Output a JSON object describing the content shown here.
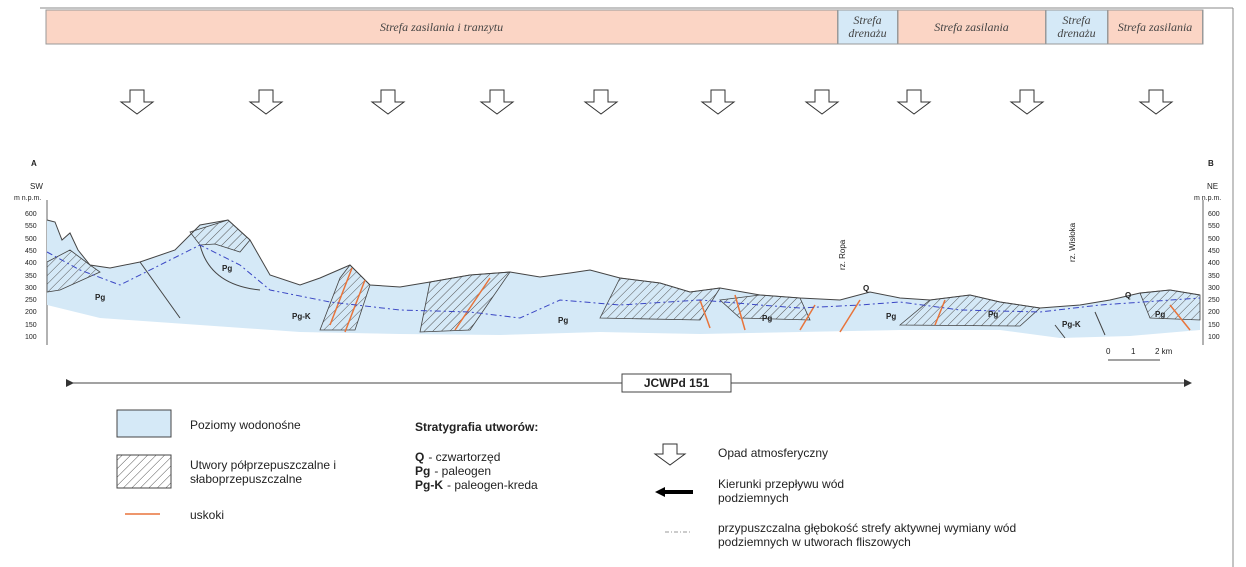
{
  "zones": [
    "Strefa zasilania i tranzytu",
    "Strefa drenażu",
    "Strefa zasilania",
    "Strefa drenażu",
    "Strefa zasilania"
  ],
  "section": {
    "start_label": "A",
    "end_label": "B",
    "start_dir": "SW",
    "end_dir": "NE",
    "unit": "m n.p.m.",
    "ticks": [
      600,
      550,
      500,
      450,
      400,
      350,
      300,
      250,
      200,
      150,
      100
    ],
    "units": [
      "Pg",
      "Pg",
      "Pg-K",
      "Pg",
      "Pg",
      "Pg",
      "Pg",
      "Pg-K",
      "Pg",
      "Q",
      "Q"
    ],
    "rivers": [
      "rz. Ropa",
      "rz. Wisłoka"
    ],
    "scale": [
      "0",
      "1",
      "2 km"
    ],
    "body": "JCWPd 151"
  },
  "legend": {
    "aquifer": "Poziomy wodonośne",
    "aquitard": "Utwory półprzepuszczalne i słaboprzepuszczalne",
    "faults": "uskoki",
    "strat_title": "Stratygrafia utworów:",
    "strat": [
      {
        "symbol": "Q",
        "text": "- czwartorzęd"
      },
      {
        "symbol": "Pg",
        "text": "- paleogen"
      },
      {
        "symbol": "Pg-K",
        "text": "- paleogen-kreda"
      }
    ],
    "precip": "Opad atmosferyczny",
    "flow": "Kierunki przepływu wód podziemnych",
    "depth": "przypuszczalna głębokość strefy aktywnej wymiany wód podziemnych w utworach fliszowych"
  }
}
